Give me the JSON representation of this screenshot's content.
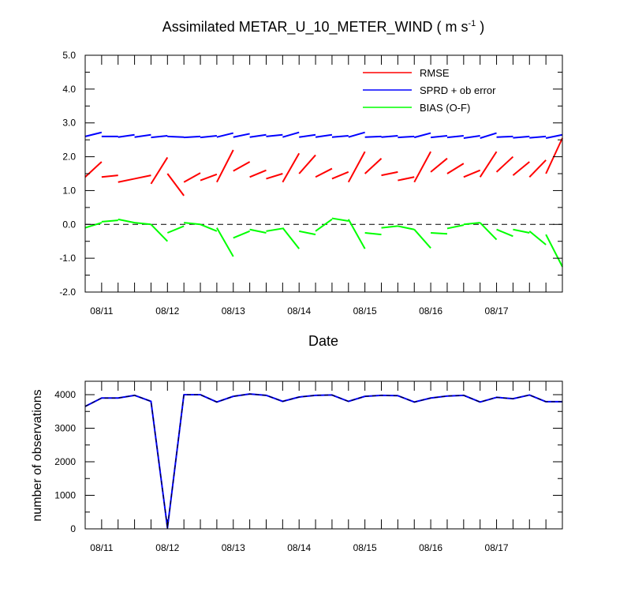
{
  "chart_data": [
    {
      "type": "line",
      "title": "Assimilated METAR_U_10_METER_WIND ( m s",
      "title_sup": "-1",
      "title_end": " )",
      "xlabel": "Date",
      "ylabel": "",
      "ylim": [
        -2.0,
        5.0
      ],
      "y_ticks": [
        "5.0",
        "4.0",
        "3.0",
        "2.0",
        "1.0",
        "0.0",
        "-1.0",
        "-2.0"
      ],
      "y_tick_values": [
        5,
        4,
        3,
        2,
        1,
        0,
        -1,
        -2
      ],
      "x_ticks": [
        "08/11",
        "08/12",
        "08/13",
        "08/14",
        "08/15",
        "08/16",
        "08/17"
      ],
      "x_tick_index": [
        1,
        5,
        9,
        13,
        17,
        21,
        25
      ],
      "zero_line": true,
      "legend_position": "top-right",
      "colors": {
        "rmse": "#ff0000",
        "sprd": "#0000ff",
        "bias": "#00ff00"
      },
      "series": [
        {
          "name": "RMSE",
          "key": "rmse",
          "segments": [
            [
              0,
              1.4,
              1.85
            ],
            [
              1,
              1.4,
              1.45
            ],
            [
              2,
              1.25,
              1.35
            ],
            [
              3,
              1.35,
              1.45
            ],
            [
              4,
              1.2,
              1.98
            ],
            [
              5,
              1.5,
              0.85
            ],
            [
              6,
              1.25,
              1.52
            ],
            [
              7,
              1.3,
              1.48
            ],
            [
              8,
              1.25,
              2.2
            ],
            [
              9,
              1.58,
              1.85
            ],
            [
              10,
              1.4,
              1.6
            ],
            [
              11,
              1.35,
              1.5
            ],
            [
              12,
              1.25,
              2.1
            ],
            [
              13,
              1.5,
              2.05
            ],
            [
              14,
              1.4,
              1.65
            ],
            [
              15,
              1.35,
              1.55
            ],
            [
              16,
              1.25,
              2.15
            ],
            [
              17,
              1.5,
              1.95
            ],
            [
              18,
              1.45,
              1.55
            ],
            [
              19,
              1.3,
              1.4
            ],
            [
              20,
              1.25,
              2.15
            ],
            [
              21,
              1.55,
              1.95
            ],
            [
              22,
              1.5,
              1.8
            ],
            [
              23,
              1.4,
              1.6
            ],
            [
              24,
              1.4,
              2.15
            ],
            [
              25,
              1.55,
              2.0
            ],
            [
              26,
              1.45,
              1.85
            ],
            [
              27,
              1.4,
              1.9
            ],
            [
              28,
              1.5,
              2.55
            ]
          ]
        },
        {
          "name": "SPRD + ob error",
          "key": "sprd",
          "segments": [
            [
              0,
              2.6,
              2.72
            ],
            [
              1,
              2.6,
              2.6
            ],
            [
              2,
              2.58,
              2.65
            ],
            [
              3,
              2.58,
              2.65
            ],
            [
              4,
              2.57,
              2.62
            ],
            [
              5,
              2.6,
              2.58
            ],
            [
              6,
              2.57,
              2.6
            ],
            [
              7,
              2.57,
              2.62
            ],
            [
              8,
              2.58,
              2.7
            ],
            [
              9,
              2.58,
              2.68
            ],
            [
              10,
              2.58,
              2.65
            ],
            [
              11,
              2.6,
              2.65
            ],
            [
              12,
              2.58,
              2.72
            ],
            [
              13,
              2.58,
              2.65
            ],
            [
              14,
              2.58,
              2.65
            ],
            [
              15,
              2.58,
              2.62
            ],
            [
              16,
              2.58,
              2.72
            ],
            [
              17,
              2.58,
              2.6
            ],
            [
              18,
              2.58,
              2.62
            ],
            [
              19,
              2.57,
              2.6
            ],
            [
              20,
              2.57,
              2.7
            ],
            [
              21,
              2.57,
              2.62
            ],
            [
              22,
              2.57,
              2.62
            ],
            [
              23,
              2.55,
              2.62
            ],
            [
              24,
              2.55,
              2.7
            ],
            [
              25,
              2.58,
              2.6
            ],
            [
              26,
              2.56,
              2.6
            ],
            [
              27,
              2.56,
              2.6
            ],
            [
              28,
              2.55,
              2.65
            ]
          ]
        },
        {
          "name": "BIAS (O-F)",
          "key": "bias",
          "segments": [
            [
              0,
              -0.1,
              0.05
            ],
            [
              1,
              0.08,
              0.12
            ],
            [
              2,
              0.15,
              0.05
            ],
            [
              3,
              0.05,
              0.0
            ],
            [
              4,
              0.0,
              -0.5
            ],
            [
              5,
              -0.25,
              -0.05
            ],
            [
              6,
              0.05,
              0.0
            ],
            [
              7,
              0.0,
              -0.2
            ],
            [
              8,
              -0.1,
              -0.95
            ],
            [
              9,
              -0.4,
              -0.2
            ],
            [
              10,
              -0.15,
              -0.25
            ],
            [
              11,
              -0.2,
              -0.12
            ],
            [
              12,
              -0.1,
              -0.72
            ],
            [
              13,
              -0.2,
              -0.3
            ],
            [
              14,
              -0.2,
              0.15
            ],
            [
              15,
              0.18,
              0.1
            ],
            [
              16,
              0.15,
              -0.72
            ],
            [
              17,
              -0.25,
              -0.3
            ],
            [
              18,
              -0.1,
              -0.05
            ],
            [
              19,
              -0.05,
              -0.15
            ],
            [
              20,
              -0.15,
              -0.7
            ],
            [
              21,
              -0.25,
              -0.28
            ],
            [
              22,
              -0.12,
              -0.02
            ],
            [
              23,
              0.0,
              0.05
            ],
            [
              24,
              0.05,
              -0.45
            ],
            [
              25,
              -0.15,
              -0.35
            ],
            [
              26,
              -0.15,
              -0.25
            ],
            [
              27,
              -0.2,
              -0.6
            ],
            [
              28,
              -0.3,
              -1.25
            ]
          ]
        }
      ]
    },
    {
      "type": "line",
      "title": "",
      "xlabel": "",
      "ylabel": "number of observations",
      "ylim": [
        0,
        4400
      ],
      "y_ticks": [
        "4000",
        "3000",
        "2000",
        "1000",
        "0"
      ],
      "y_tick_values": [
        4000,
        3000,
        2000,
        1000,
        0
      ],
      "x_ticks": [
        "08/11",
        "08/12",
        "08/13",
        "08/14",
        "08/15",
        "08/16",
        "08/17"
      ],
      "x_tick_index": [
        1,
        5,
        9,
        13,
        17,
        21,
        25
      ],
      "series": [
        {
          "name": "number of observations",
          "color": "#0000ff",
          "x": [
            0,
            1,
            2,
            3,
            4,
            5,
            6,
            7,
            8,
            9,
            10,
            11,
            12,
            13,
            14,
            15,
            16,
            17,
            18,
            19,
            20,
            21,
            22,
            23,
            24,
            25,
            26,
            27,
            28,
            29
          ],
          "values": [
            3650,
            3900,
            3900,
            3980,
            3800,
            30,
            4000,
            4000,
            3780,
            3950,
            4020,
            3980,
            3800,
            3930,
            3980,
            3990,
            3800,
            3950,
            3980,
            3970,
            3780,
            3900,
            3960,
            3980,
            3780,
            3920,
            3880,
            3990,
            3790,
            3790
          ]
        }
      ]
    }
  ]
}
